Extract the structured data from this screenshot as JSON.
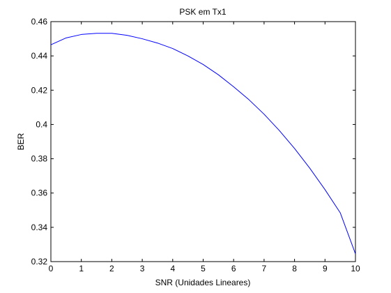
{
  "chart_data": {
    "type": "line",
    "title": "PSK em Tx1",
    "xlabel": "SNR (Unidades Lineares)",
    "ylabel": "BER",
    "xlim": [
      0,
      10
    ],
    "ylim": [
      0.32,
      0.46
    ],
    "x_ticks": [
      "0",
      "1",
      "2",
      "3",
      "4",
      "5",
      "6",
      "7",
      "8",
      "9",
      "10"
    ],
    "y_ticks": [
      "0.32",
      "0.34",
      "0.36",
      "0.38",
      "0.4",
      "0.42",
      "0.44",
      "0.46"
    ],
    "grid": false,
    "series": [
      {
        "color": "#0000ff",
        "x": [
          0,
          0.5,
          1,
          1.5,
          2,
          2.5,
          3,
          3.5,
          4,
          4.5,
          5,
          5.5,
          6,
          6.5,
          7,
          7.5,
          8,
          8.5,
          9,
          9.5,
          10
        ],
        "y": [
          0.4465,
          0.4505,
          0.4525,
          0.4532,
          0.4532,
          0.452,
          0.45,
          0.4475,
          0.4443,
          0.44,
          0.435,
          0.429,
          0.422,
          0.4145,
          0.406,
          0.3965,
          0.386,
          0.3745,
          0.362,
          0.3485,
          0.3245
        ]
      }
    ]
  }
}
